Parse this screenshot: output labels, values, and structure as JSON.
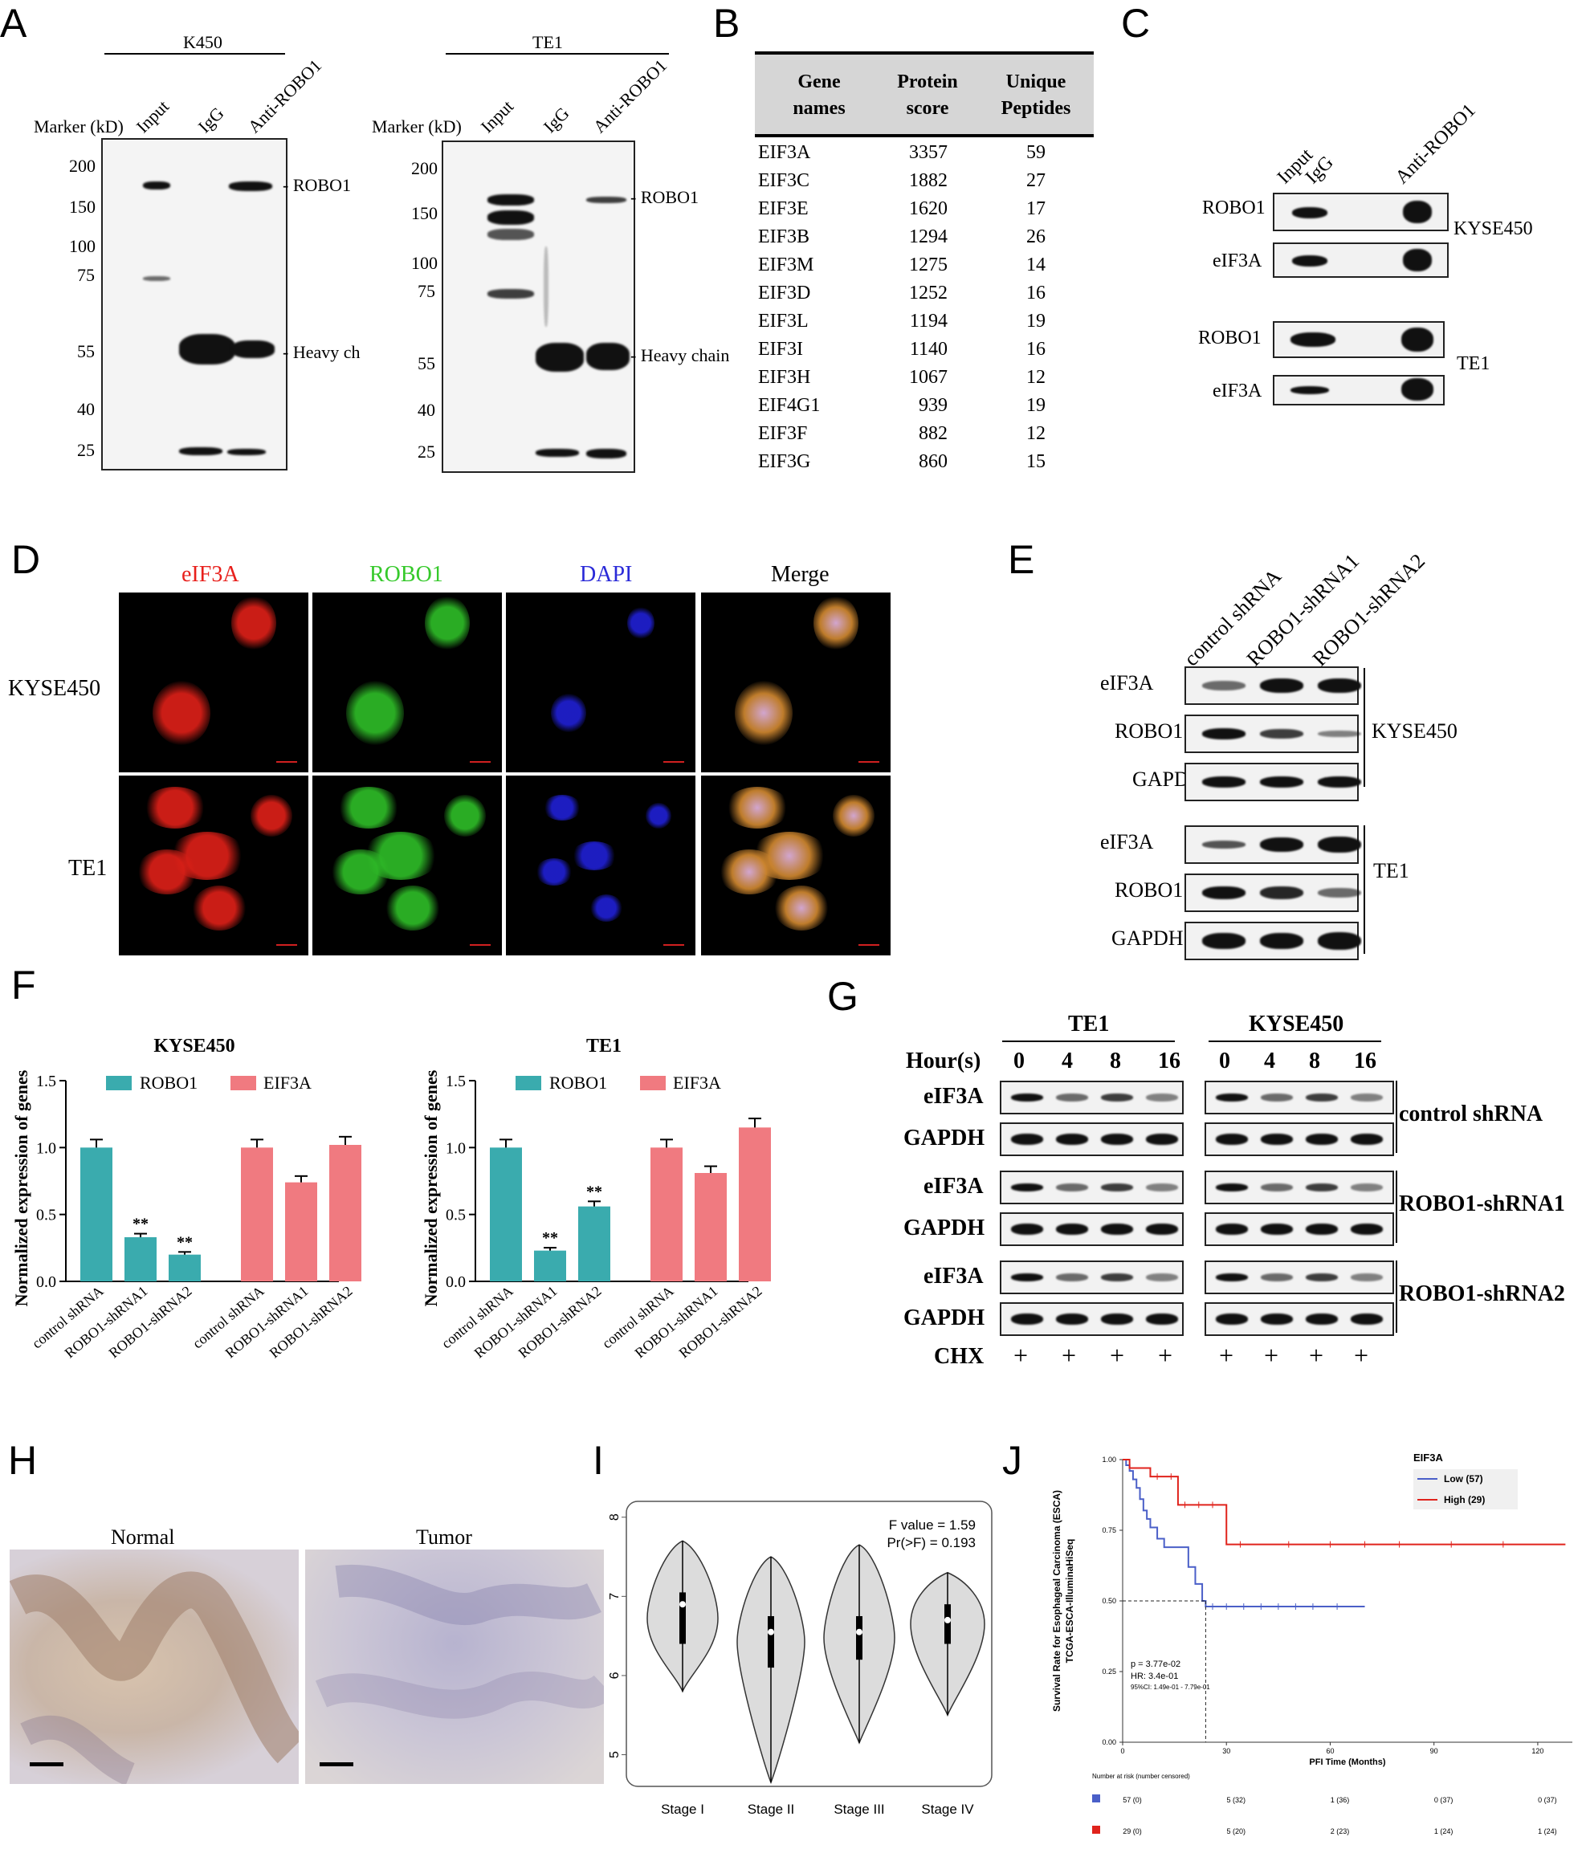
{
  "panelA": {
    "label": "A",
    "k450": {
      "title": "K450",
      "marker": "Marker (kD)",
      "lanes": [
        "Input",
        "IgG",
        "Anti-ROBO1"
      ],
      "markers": [
        "200",
        "150",
        "100",
        "75",
        "55",
        "40",
        "25"
      ],
      "robo1": "ROBO1",
      "heavy": "Heavy ch"
    },
    "te1": {
      "title": "TE1",
      "marker": "Marker (kD)",
      "lanes": [
        "Input",
        "IgG",
        "Anti-ROBO1"
      ],
      "markers": [
        "200",
        "150",
        "100",
        "75",
        "55",
        "40",
        "25"
      ],
      "robo1": "ROBO1",
      "heavy": "Heavy chain"
    }
  },
  "panelB": {
    "label": "B",
    "headers": [
      "Gene names",
      "Protein score",
      "Unique Peptides"
    ],
    "rows": [
      [
        "EIF3A",
        "3357",
        "59"
      ],
      [
        "EIF3C",
        "1882",
        "27"
      ],
      [
        "EIF3E",
        "1620",
        "17"
      ],
      [
        "EIF3B",
        "1294",
        "26"
      ],
      [
        "EIF3M",
        "1275",
        "14"
      ],
      [
        "EIF3D",
        "1252",
        "16"
      ],
      [
        "EIF3L",
        "1194",
        "19"
      ],
      [
        "EIF3I",
        "1140",
        "16"
      ],
      [
        "EIF3H",
        "1067",
        "12"
      ],
      [
        "EIF4G1",
        "939",
        "19"
      ],
      [
        "EIF3F",
        "882",
        "12"
      ],
      [
        "EIF3G",
        "860",
        "15"
      ]
    ]
  },
  "panelC": {
    "label": "C",
    "lanes": [
      "Input",
      "IgG",
      "Anti-ROBO1"
    ],
    "rows": [
      "ROBO1",
      "eIF3A",
      "ROBO1",
      "eIF3A"
    ],
    "cells": [
      "KYSE450",
      "TE1"
    ]
  },
  "panelD": {
    "label": "D",
    "channels": [
      "eIF3A",
      "ROBO1",
      "DAPI",
      "Merge"
    ],
    "rows": [
      "KYSE450",
      "TE1"
    ],
    "colors": {
      "red": "#e8201c",
      "green": "#35c92a",
      "blue": "#2a2ad8"
    }
  },
  "panelE": {
    "label": "E",
    "lanes": [
      "control shRNA",
      "ROBO1-shRNA1",
      "ROBO1-shRNA2"
    ],
    "rows": [
      "eIF3A",
      "ROBO1",
      "GAPDH",
      "eIF3A",
      "ROBO1",
      "GAPDH"
    ],
    "cells": [
      "KYSE450",
      "TE1"
    ]
  },
  "panelF": {
    "label": "F",
    "ylabel": "Normalized expression of genes",
    "legend": [
      "ROBO1",
      "EIF3A"
    ],
    "sig": "**",
    "colors": {
      "robo1": "#3aabae",
      "eif3a": "#f07a80"
    }
  },
  "panelG": {
    "label": "G",
    "hour": "Hour(s)",
    "hours": [
      "0",
      "4",
      "8",
      "16"
    ],
    "cells": [
      "TE1",
      "KYSE450"
    ],
    "rows": [
      "eIF3A",
      "GAPDH"
    ],
    "groups": [
      "control shRNA",
      "ROBO1-shRNA1",
      "ROBO1-shRNA2"
    ],
    "chx": "CHX",
    "plus": "+"
  },
  "panelH": {
    "label": "H",
    "normal": "Normal",
    "tumor": "Tumor"
  },
  "panelI": {
    "label": "I",
    "fvalue": "F value = 1.59",
    "pr": "Pr(>F) = 0.193",
    "stages": [
      "Stage I",
      "Stage II",
      "Stage III",
      "Stage IV"
    ],
    "yticks": [
      "5",
      "6",
      "7",
      "8"
    ]
  },
  "panelJ": {
    "label": "J",
    "legend_title": "EIF3A",
    "low": "Low (57)",
    "high": "High (29)",
    "ylabel1": "Survival Rate for Esophageal Carcinoma (ESCA)",
    "ylabel2": "TCGA-ESCA-IlluminaHiSeq",
    "xlabel": "PFI Time (Months)",
    "p": "p = 3.77e-02",
    "hr": "HR: 3.4e-01",
    "ci": "95%CI: 1.49e-01 - 7.79e-01",
    "yticks": [
      "0.00",
      "0.25",
      "0.50",
      "0.75",
      "1.00"
    ],
    "xticks": [
      "0",
      "30",
      "60",
      "90",
      "120"
    ],
    "risk_title": "Number at risk (number censored)",
    "risk_low": [
      "57 (0)",
      "5 (32)",
      "1 (36)",
      "0 (37)",
      "0 (37)"
    ],
    "risk_high": [
      "29 (0)",
      "5 (20)",
      "2 (23)",
      "1 (24)",
      "1 (24)"
    ],
    "colors": {
      "low": "#4a5fc8",
      "high": "#e0231c"
    }
  },
  "chart_data": [
    {
      "type": "bar",
      "title": "KYSE450",
      "ylabel": "Normalized expression of genes",
      "ylim": [
        0,
        1.5
      ],
      "categories": [
        "control shRNA",
        "ROBO1-shRNA1",
        "ROBO1-shRNA2"
      ],
      "series": [
        {
          "name": "ROBO1",
          "values": [
            1.0,
            0.33,
            0.2
          ]
        },
        {
          "name": "EIF3A",
          "values": [
            1.0,
            0.74,
            1.02
          ]
        }
      ],
      "yticks": [
        "0.0",
        "0.5",
        "1.0",
        "1.5"
      ]
    },
    {
      "type": "bar",
      "title": "TE1",
      "ylabel": "Normalized expression of genes",
      "ylim": [
        0,
        1.5
      ],
      "categories": [
        "control shRNA",
        "ROBO1-shRNA1",
        "ROBO1-shRNA2"
      ],
      "series": [
        {
          "name": "ROBO1",
          "values": [
            1.0,
            0.23,
            0.56
          ]
        },
        {
          "name": "EIF3A",
          "values": [
            1.0,
            0.81,
            1.15
          ]
        }
      ],
      "yticks": [
        "0.0",
        "0.5",
        "1.0",
        "1.5"
      ]
    }
  ]
}
